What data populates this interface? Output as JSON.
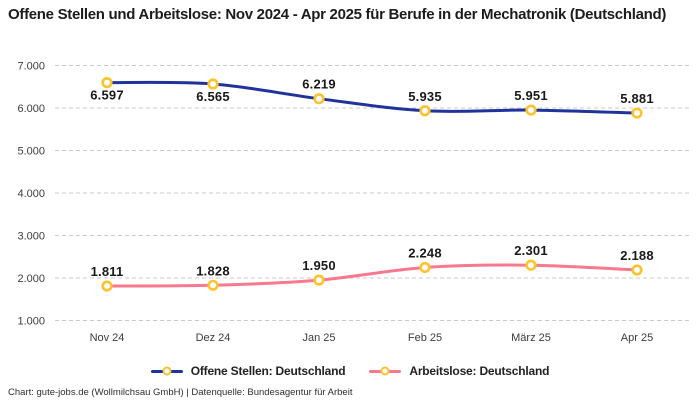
{
  "title": "Offene Stellen und Arbeitslose: Nov 2024 - Apr 2025 für Berufe in der Mechatronik (Deutschland)",
  "footer": "Chart: gute-jobs.de (Wollmilchsau GmbH) | Datenquelle: Bundesagentur für Arbeit",
  "legend": [
    {
      "label": "Offene Stellen: Deutschland",
      "color": "#20339b"
    },
    {
      "label": "Arbeitslose: Deutschland",
      "color": "#f8798f"
    }
  ],
  "chart_data": {
    "type": "line",
    "title": "Offene Stellen und Arbeitslose: Nov 2024 - Apr 2025 für Berufe in der Mechatronik (Deutschland)",
    "categories": [
      "Nov 24",
      "Dez 24",
      "Jan 25",
      "Feb 25",
      "März 25",
      "Apr 25"
    ],
    "series": [
      {
        "name": "Offene Stellen: Deutschland",
        "color": "#20339b",
        "values": [
          6597,
          6565,
          6219,
          5935,
          5951,
          5881
        ],
        "value_labels": [
          "6.597",
          "6.565",
          "6.219",
          "5.935",
          "5.951",
          "5.881"
        ],
        "label_positions": [
          "below",
          "below",
          "above",
          "above",
          "above",
          "above"
        ]
      },
      {
        "name": "Arbeitslose: Deutschland",
        "color": "#f8798f",
        "values": [
          1811,
          1828,
          1950,
          2248,
          2301,
          2188
        ],
        "value_labels": [
          "1.811",
          "1.828",
          "1.950",
          "2.248",
          "2.301",
          "2.188"
        ],
        "label_positions": [
          "above",
          "above",
          "above",
          "above",
          "above",
          "above"
        ]
      }
    ],
    "yticks": [
      {
        "v": 7000,
        "label": "7.000"
      },
      {
        "v": 6000,
        "label": "6.000"
      },
      {
        "v": 5000,
        "label": "5.000"
      },
      {
        "v": 4000,
        "label": "4.000"
      },
      {
        "v": 3000,
        "label": "3.000"
      },
      {
        "v": 2000,
        "label": "2.000"
      },
      {
        "v": 1000,
        "label": "1.000"
      }
    ],
    "ylim": [
      1000,
      7000
    ],
    "grid": "horizontal-dashed",
    "grid_color": "#c9c9c9",
    "legend_position": "bottom",
    "marker": {
      "stroke": "#fcc32d",
      "fill": "#ffffff"
    }
  }
}
